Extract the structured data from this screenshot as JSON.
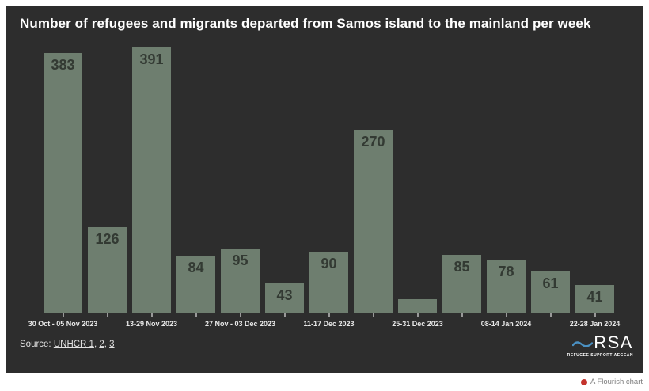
{
  "title": "Number of refugees and migrants departed from Samos island to the mainland per week",
  "chart_data": {
    "type": "bar",
    "title": "Number of refugees and migrants departed from Samos island to the mainland per week",
    "values": [
      383,
      126,
      391,
      84,
      95,
      43,
      90,
      270,
      20,
      85,
      78,
      61,
      41
    ],
    "bar_labels": [
      "383",
      "126",
      "391",
      "84",
      "95",
      "43",
      "90",
      "270",
      "",
      "85",
      "78",
      "61",
      "41"
    ],
    "x_tick_labels": [
      "30 Oct - 05 Nov 2023",
      "",
      "13-29 Nov 2023",
      "",
      "27 Nov - 03 Dec 2023",
      "",
      "11-17 Dec 2023",
      "",
      "25-31 Dec 2023",
      "",
      "08-14 Jan 2024",
      "",
      "22-28 Jan 2024"
    ],
    "xlabel": "",
    "ylabel": "",
    "ylim": [
      0,
      391
    ],
    "grid": false,
    "legend": "none",
    "bar_color": "#6e7e6f"
  },
  "source": {
    "prefix": "Source: ",
    "links": [
      "UNHCR 1",
      "2",
      "3"
    ],
    "separator": ", "
  },
  "branding": {
    "rsa": "RSA",
    "rsa_sub": "REFUGEE SUPPORT AEGEAN",
    "flourish": "A Flourish chart"
  },
  "colors": {
    "page_bg": "#ffffff",
    "card_bg": "#2d2d2d",
    "bar": "#6e7e6f",
    "bar_label": "#333a33",
    "title_text": "#ffffff",
    "axis_text": "#e8e8e8",
    "tick": "#999999",
    "source_text": "#e0e0e0",
    "rsa_blue": "#4a90c2",
    "flourish_red": "#c4332d",
    "flourish_text": "#7d7d7d"
  }
}
